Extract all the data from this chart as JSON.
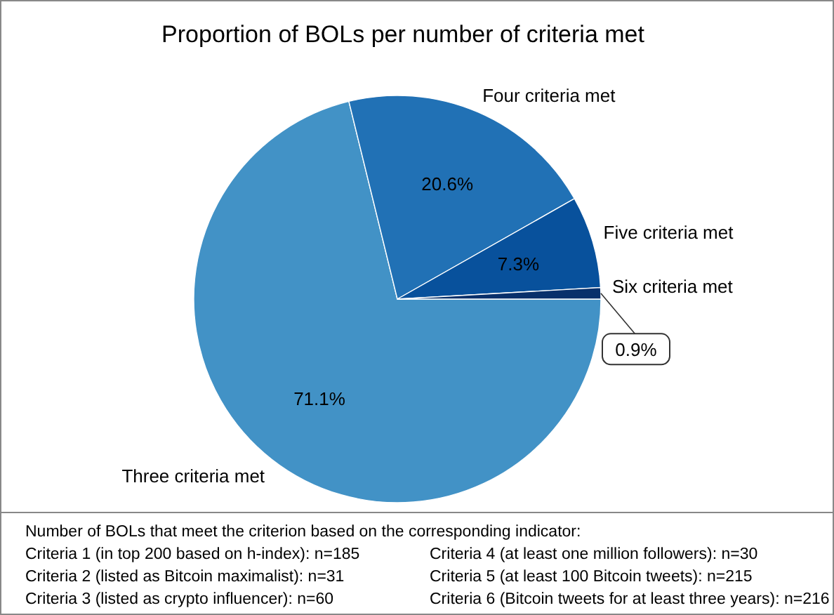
{
  "chart_data": {
    "type": "pie",
    "title": "Proportion of BOLs per number of criteria met",
    "categories": [
      "Three criteria met",
      "Four criteria met",
      "Five criteria met",
      "Six criteria met"
    ],
    "values": [
      71.1,
      20.6,
      7.3,
      0.9
    ],
    "colors": [
      "#4292c6",
      "#2171b5",
      "#08519c",
      "#08306b"
    ],
    "value_labels": [
      "71.1%",
      "20.6%",
      "7.3%",
      "0.9%"
    ],
    "annotations": [
      "Number of BOLs that meet the criterion based on the corresponding indicator:",
      "Criteria 1 (in top 200 based on h-index): n=185",
      "Criteria 2 (listed as Bitcoin maximalist): n=31",
      "Criteria 3 (listed as crypto influencer): n=60",
      "Criteria 4 (at least one million followers): n=30",
      "Criteria 5 (at least 100 Bitcoin tweets): n=215",
      "Criteria 6 (Bitcoin tweets for at least three years): n=216"
    ]
  }
}
